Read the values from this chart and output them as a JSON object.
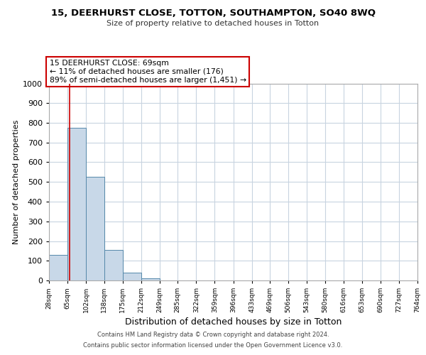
{
  "title": "15, DEERHURST CLOSE, TOTTON, SOUTHAMPTON, SO40 8WQ",
  "subtitle": "Size of property relative to detached houses in Totton",
  "xlabel": "Distribution of detached houses by size in Totton",
  "ylabel": "Number of detached properties",
  "bar_values": [
    130,
    775,
    525,
    155,
    40,
    10,
    0,
    0,
    0,
    0,
    0,
    0,
    0,
    0,
    0,
    0,
    0,
    0,
    0,
    0
  ],
  "bin_edges": [
    28,
    65,
    102,
    138,
    175,
    212,
    249,
    285,
    322,
    359,
    396,
    433,
    469,
    506,
    543,
    580,
    616,
    653,
    690,
    727,
    764
  ],
  "tick_labels": [
    "28sqm",
    "65sqm",
    "102sqm",
    "138sqm",
    "175sqm",
    "212sqm",
    "249sqm",
    "285sqm",
    "322sqm",
    "359sqm",
    "396sqm",
    "433sqm",
    "469sqm",
    "506sqm",
    "543sqm",
    "580sqm",
    "616sqm",
    "653sqm",
    "690sqm",
    "727sqm",
    "764sqm"
  ],
  "bar_color": "#c8d8e8",
  "bar_edge_color": "#5588aa",
  "property_line_x": 69,
  "annotation_line1": "15 DEERHURST CLOSE: 69sqm",
  "annotation_line2": "← 11% of detached houses are smaller (176)",
  "annotation_line3": "89% of semi-detached houses are larger (1,451) →",
  "annotation_box_color": "#cc0000",
  "ylim": [
    0,
    1000
  ],
  "footer_line1": "Contains HM Land Registry data © Crown copyright and database right 2024.",
  "footer_line2": "Contains public sector information licensed under the Open Government Licence v3.0.",
  "background_color": "#ffffff",
  "grid_color": "#c8d4e0",
  "title_fontsize": 9.5,
  "subtitle_fontsize": 8,
  "ylabel_fontsize": 8,
  "xlabel_fontsize": 9,
  "ytick_fontsize": 8,
  "xtick_fontsize": 6.5,
  "annotation_fontsize": 7.8,
  "footer_fontsize": 6
}
